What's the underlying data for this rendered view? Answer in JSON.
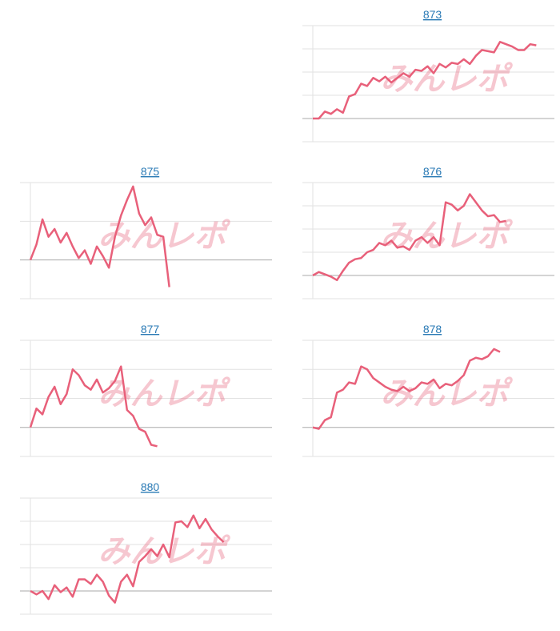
{
  "watermark": "みんレポ",
  "chart_data": [
    {
      "type": "line",
      "title": "873",
      "color": "#e8607a",
      "xlim": [
        0,
        40
      ],
      "ylim": [
        -1000,
        4000
      ],
      "yticks": [
        -1000,
        0,
        1000,
        2000,
        3000,
        4000
      ],
      "values": [
        0,
        0,
        300,
        200,
        400,
        250,
        950,
        1050,
        1500,
        1400,
        1750,
        1600,
        1800,
        1550,
        1750,
        1950,
        1800,
        2100,
        2050,
        2250,
        1950,
        2350,
        2200,
        2400,
        2350,
        2550,
        2350,
        2700,
        2950,
        2900,
        2850,
        3300,
        3200,
        3100,
        2950,
        2950,
        3200,
        3150
      ]
    },
    {
      "type": "line",
      "title": "875",
      "color": "#e8607a",
      "xlim": [
        0,
        40
      ],
      "ylim": [
        -1000,
        2000
      ],
      "yticks": [
        -1000,
        0,
        1000,
        2000
      ],
      "values": [
        0,
        400,
        1050,
        600,
        800,
        450,
        700,
        350,
        50,
        250,
        -100,
        350,
        100,
        -200,
        600,
        1150,
        1550,
        1900,
        1200,
        900,
        1100,
        650,
        600,
        -700
      ]
    },
    {
      "type": "line",
      "title": "876",
      "color": "#e8607a",
      "xlim": [
        0,
        40
      ],
      "ylim": [
        -1000,
        4000
      ],
      "yticks": [
        -1000,
        0,
        1000,
        2000,
        3000,
        4000
      ],
      "values": [
        0,
        150,
        50,
        -50,
        -200,
        200,
        550,
        700,
        750,
        1000,
        1100,
        1400,
        1300,
        1500,
        1200,
        1250,
        1100,
        1500,
        1650,
        1400,
        1650,
        1300,
        3150,
        3050,
        2800,
        3000,
        3500,
        3150,
        2800,
        2550,
        2600,
        2300,
        2350
      ]
    },
    {
      "type": "line",
      "title": "877",
      "color": "#e8607a",
      "xlim": [
        0,
        40
      ],
      "ylim": [
        -1000,
        3000
      ],
      "yticks": [
        -1000,
        0,
        1000,
        2000,
        3000
      ],
      "values": [
        0,
        650,
        450,
        1050,
        1400,
        800,
        1150,
        2000,
        1800,
        1450,
        1300,
        1650,
        1200,
        1350,
        1600,
        2100,
        600,
        400,
        -50,
        -150,
        -600,
        -650
      ]
    },
    {
      "type": "line",
      "title": "878",
      "color": "#e8607a",
      "xlim": [
        0,
        40
      ],
      "ylim": [
        -1000,
        3000
      ],
      "yticks": [
        -1000,
        0,
        1000,
        2000,
        3000
      ],
      "values": [
        0,
        -50,
        250,
        350,
        1200,
        1300,
        1550,
        1500,
        2100,
        2000,
        1700,
        1550,
        1400,
        1300,
        1250,
        1400,
        1250,
        1350,
        1550,
        1500,
        1650,
        1350,
        1500,
        1450,
        1600,
        1800,
        2300,
        2400,
        2350,
        2450,
        2700,
        2600
      ]
    },
    {
      "type": "line",
      "title": "880",
      "color": "#e8607a",
      "xlim": [
        0,
        40
      ],
      "ylim": [
        -1000,
        4000
      ],
      "yticks": [
        -1000,
        0,
        1000,
        2000,
        3000,
        4000
      ],
      "values": [
        0,
        -150,
        0,
        -350,
        250,
        -50,
        150,
        -250,
        500,
        500,
        300,
        700,
        400,
        -200,
        -500,
        400,
        700,
        200,
        1250,
        1500,
        1800,
        1500,
        2000,
        1450,
        2950,
        3000,
        2750,
        3250,
        2700,
        3100,
        2650,
        2350,
        2100
      ]
    }
  ]
}
